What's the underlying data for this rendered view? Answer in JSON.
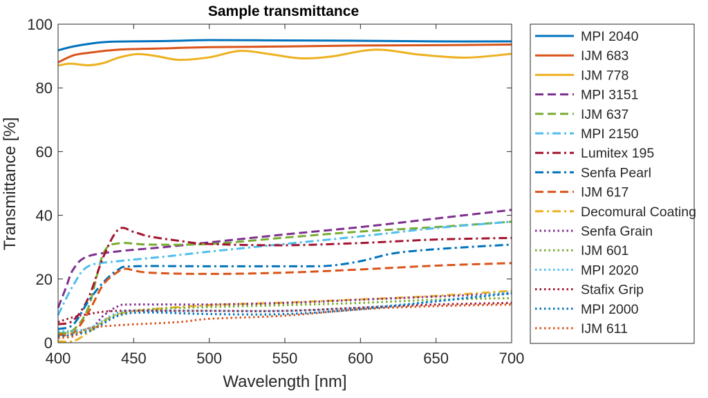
{
  "chart_data": {
    "type": "line",
    "title": "Sample transmittance",
    "xlabel": "Wavelength [nm]",
    "ylabel": "Transmittance [%]",
    "xlim": [
      400,
      700
    ],
    "ylim": [
      0,
      100
    ],
    "xticks": [
      400,
      450,
      500,
      550,
      600,
      650,
      700
    ],
    "yticks": [
      0,
      20,
      40,
      60,
      80,
      100
    ],
    "grid": false,
    "legend_placement": "outside-right",
    "series": [
      {
        "name": "MPI 2040",
        "color": "#0072BD",
        "style": "solid",
        "points": [
          [
            400,
            91.8
          ],
          [
            410,
            93
          ],
          [
            420,
            93.8
          ],
          [
            435,
            94.5
          ],
          [
            470,
            94.7
          ],
          [
            500,
            95
          ],
          [
            550,
            94.9
          ],
          [
            600,
            94.8
          ],
          [
            650,
            94.6
          ],
          [
            700,
            94.6
          ]
        ]
      },
      {
        "name": "IJM 683",
        "color": "#D95319",
        "style": "solid",
        "points": [
          [
            400,
            88
          ],
          [
            410,
            90.2
          ],
          [
            420,
            91
          ],
          [
            440,
            92
          ],
          [
            470,
            92.4
          ],
          [
            500,
            92.8
          ],
          [
            550,
            93
          ],
          [
            600,
            93.3
          ],
          [
            650,
            93.4
          ],
          [
            700,
            93.6
          ]
        ]
      },
      {
        "name": "IJM 778",
        "color": "#EDB120",
        "style": "solid",
        "points": [
          [
            400,
            87
          ],
          [
            408,
            87.6
          ],
          [
            420,
            87.1
          ],
          [
            430,
            87.8
          ],
          [
            440,
            89.5
          ],
          [
            452,
            90.6
          ],
          [
            465,
            90
          ],
          [
            480,
            88.8
          ],
          [
            500,
            89.6
          ],
          [
            520,
            91.6
          ],
          [
            540,
            90.6
          ],
          [
            560,
            89.3
          ],
          [
            580,
            89.8
          ],
          [
            610,
            92
          ],
          [
            640,
            90.4
          ],
          [
            670,
            89.5
          ],
          [
            700,
            90.7
          ]
        ]
      },
      {
        "name": "MPI 3151",
        "color": "#7E2F8E",
        "style": "dash",
        "points": [
          [
            400,
            11
          ],
          [
            405,
            17
          ],
          [
            410,
            23
          ],
          [
            419,
            27
          ],
          [
            440,
            28.7
          ],
          [
            470,
            30
          ],
          [
            500,
            31.5
          ],
          [
            550,
            34
          ],
          [
            600,
            36.3
          ],
          [
            650,
            39
          ],
          [
            700,
            41.7
          ]
        ]
      },
      {
        "name": "IJM 637",
        "color": "#77AC30",
        "style": "dash",
        "points": [
          [
            400,
            3
          ],
          [
            410,
            4
          ],
          [
            420,
            11
          ],
          [
            430,
            28
          ],
          [
            440,
            31.2
          ],
          [
            460,
            30.8
          ],
          [
            500,
            31
          ],
          [
            550,
            33
          ],
          [
            600,
            34.9
          ],
          [
            650,
            36.3
          ],
          [
            700,
            38
          ]
        ]
      },
      {
        "name": "MPI 2150",
        "color": "#4DBEEE",
        "style": "dashdot",
        "points": [
          [
            400,
            8.7
          ],
          [
            410,
            18
          ],
          [
            420,
            24
          ],
          [
            440,
            25.6
          ],
          [
            470,
            27
          ],
          [
            500,
            28.6
          ],
          [
            550,
            31
          ],
          [
            600,
            33.4
          ],
          [
            650,
            36
          ],
          [
            700,
            38
          ]
        ]
      },
      {
        "name": "Lumitex 195",
        "color": "#A2142F",
        "style": "dashdot",
        "points": [
          [
            400,
            5.8
          ],
          [
            410,
            7
          ],
          [
            420,
            14
          ],
          [
            430,
            27
          ],
          [
            440,
            35.6
          ],
          [
            450,
            34.8
          ],
          [
            460,
            33.4
          ],
          [
            480,
            32
          ],
          [
            500,
            31
          ],
          [
            550,
            30.6
          ],
          [
            600,
            31.3
          ],
          [
            650,
            32.4
          ],
          [
            700,
            32.9
          ]
        ]
      },
      {
        "name": "Senfa Pearl",
        "color": "#0072BD",
        "style": "dashdot",
        "points": [
          [
            400,
            4.3
          ],
          [
            410,
            5.7
          ],
          [
            420,
            13
          ],
          [
            430,
            19
          ],
          [
            440,
            23
          ],
          [
            450,
            24
          ],
          [
            500,
            24
          ],
          [
            560,
            24
          ],
          [
            580,
            24.2
          ],
          [
            600,
            25.6
          ],
          [
            620,
            27.9
          ],
          [
            640,
            29
          ],
          [
            670,
            30
          ],
          [
            700,
            30.8
          ]
        ]
      },
      {
        "name": "IJM 617",
        "color": "#D95319",
        "style": "dash",
        "points": [
          [
            400,
            2.5
          ],
          [
            410,
            3
          ],
          [
            420,
            9.5
          ],
          [
            430,
            18.3
          ],
          [
            440,
            22.4
          ],
          [
            445,
            23.2
          ],
          [
            460,
            22
          ],
          [
            500,
            21.6
          ],
          [
            550,
            22
          ],
          [
            600,
            23
          ],
          [
            650,
            24.2
          ],
          [
            700,
            25
          ]
        ]
      },
      {
        "name": "Decomural Coating",
        "color": "#EDB120",
        "style": "dashdot",
        "points": [
          [
            400,
            0.5
          ],
          [
            410,
            0.5
          ],
          [
            420,
            3.2
          ],
          [
            430,
            6.8
          ],
          [
            440,
            9
          ],
          [
            460,
            10.4
          ],
          [
            500,
            11.8
          ],
          [
            550,
            12.6
          ],
          [
            600,
            13.6
          ],
          [
            650,
            14.7
          ],
          [
            700,
            16.3
          ]
        ]
      },
      {
        "name": "Senfa Grain",
        "color": "#7E2F8E",
        "style": "dot",
        "points": [
          [
            400,
            3
          ],
          [
            420,
            4
          ],
          [
            430,
            8.5
          ],
          [
            440,
            11.5
          ],
          [
            450,
            12
          ],
          [
            500,
            12
          ],
          [
            550,
            12.5
          ],
          [
            600,
            13.5
          ],
          [
            650,
            14.5
          ],
          [
            700,
            15.5
          ]
        ]
      },
      {
        "name": "IJM 601",
        "color": "#77AC30",
        "style": "dot",
        "points": [
          [
            400,
            3
          ],
          [
            420,
            4
          ],
          [
            440,
            9
          ],
          [
            460,
            10.5
          ],
          [
            500,
            11.2
          ],
          [
            550,
            11.8
          ],
          [
            600,
            12.5
          ],
          [
            650,
            13.5
          ],
          [
            700,
            14
          ]
        ]
      },
      {
        "name": "MPI 2020",
        "color": "#4DBEEE",
        "style": "dot",
        "points": [
          [
            400,
            3.5
          ],
          [
            420,
            4.5
          ],
          [
            440,
            9.5
          ],
          [
            460,
            10
          ],
          [
            500,
            10
          ],
          [
            550,
            10
          ],
          [
            600,
            11
          ],
          [
            650,
            13
          ],
          [
            700,
            16
          ]
        ]
      },
      {
        "name": "Stafix Grip",
        "color": "#A2142F",
        "style": "dot",
        "points": [
          [
            400,
            6.5
          ],
          [
            410,
            8
          ],
          [
            420,
            9
          ],
          [
            440,
            10
          ],
          [
            500,
            10
          ],
          [
            550,
            10
          ],
          [
            600,
            11
          ],
          [
            650,
            12
          ],
          [
            700,
            12.5
          ]
        ]
      },
      {
        "name": "MPI 2000",
        "color": "#0072BD",
        "style": "dot",
        "points": [
          [
            400,
            2
          ],
          [
            420,
            3.5
          ],
          [
            440,
            8.5
          ],
          [
            460,
            9.5
          ],
          [
            500,
            9
          ],
          [
            550,
            9
          ],
          [
            600,
            10.5
          ],
          [
            650,
            13
          ],
          [
            700,
            15.5
          ]
        ]
      },
      {
        "name": "IJM 611",
        "color": "#D95319",
        "style": "dot",
        "points": [
          [
            400,
            1.5
          ],
          [
            410,
            2
          ],
          [
            420,
            4.5
          ],
          [
            440,
            5.5
          ],
          [
            480,
            6.5
          ],
          [
            500,
            7.5
          ],
          [
            550,
            8.5
          ],
          [
            600,
            10.5
          ],
          [
            650,
            11.5
          ],
          [
            700,
            12
          ]
        ]
      }
    ]
  }
}
